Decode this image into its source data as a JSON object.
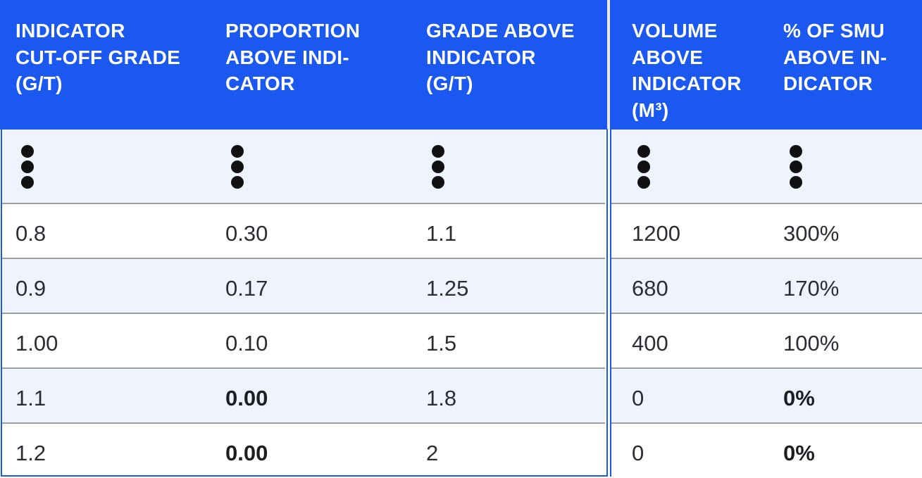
{
  "colors": {
    "header_bg": "#1a58f0",
    "header_text": "#ffffff",
    "row_alt_bg": "#eef3fd",
    "border_blue": "#1a58f0",
    "row_divider": "#9a9fa6",
    "cell_text": "#2a2d33"
  },
  "table": {
    "headers": [
      [
        "INDICATOR",
        "CUT-OFF GRADE",
        "(G/T)"
      ],
      [
        "PROPORTION",
        "ABOVE INDI-",
        "CATOR"
      ],
      [
        "GRADE ABOVE",
        "INDICATOR",
        "(G/T)"
      ],
      [
        "VOLUME",
        "ABOVE",
        "INDICATOR",
        "(M³)"
      ],
      [
        "% OF SMU",
        "ABOVE IN-",
        "DICATOR"
      ]
    ],
    "ellipsis_row": "vertical-ellipsis-icon",
    "rows": [
      [
        "0.8",
        "0.30",
        "1.1",
        "1200",
        "300%"
      ],
      [
        "0.9",
        "0.17",
        "1.25",
        "680",
        "170%"
      ],
      [
        "1.00",
        "0.10",
        "1.5",
        "400",
        "100%"
      ],
      [
        "1.1",
        "0.00",
        "1.8",
        "0",
        "0%"
      ],
      [
        "1.2",
        "0.00",
        "2",
        "0",
        "0%"
      ]
    ],
    "bold_cells": [
      [
        3,
        1
      ],
      [
        3,
        4
      ],
      [
        4,
        1
      ],
      [
        4,
        4
      ]
    ]
  }
}
